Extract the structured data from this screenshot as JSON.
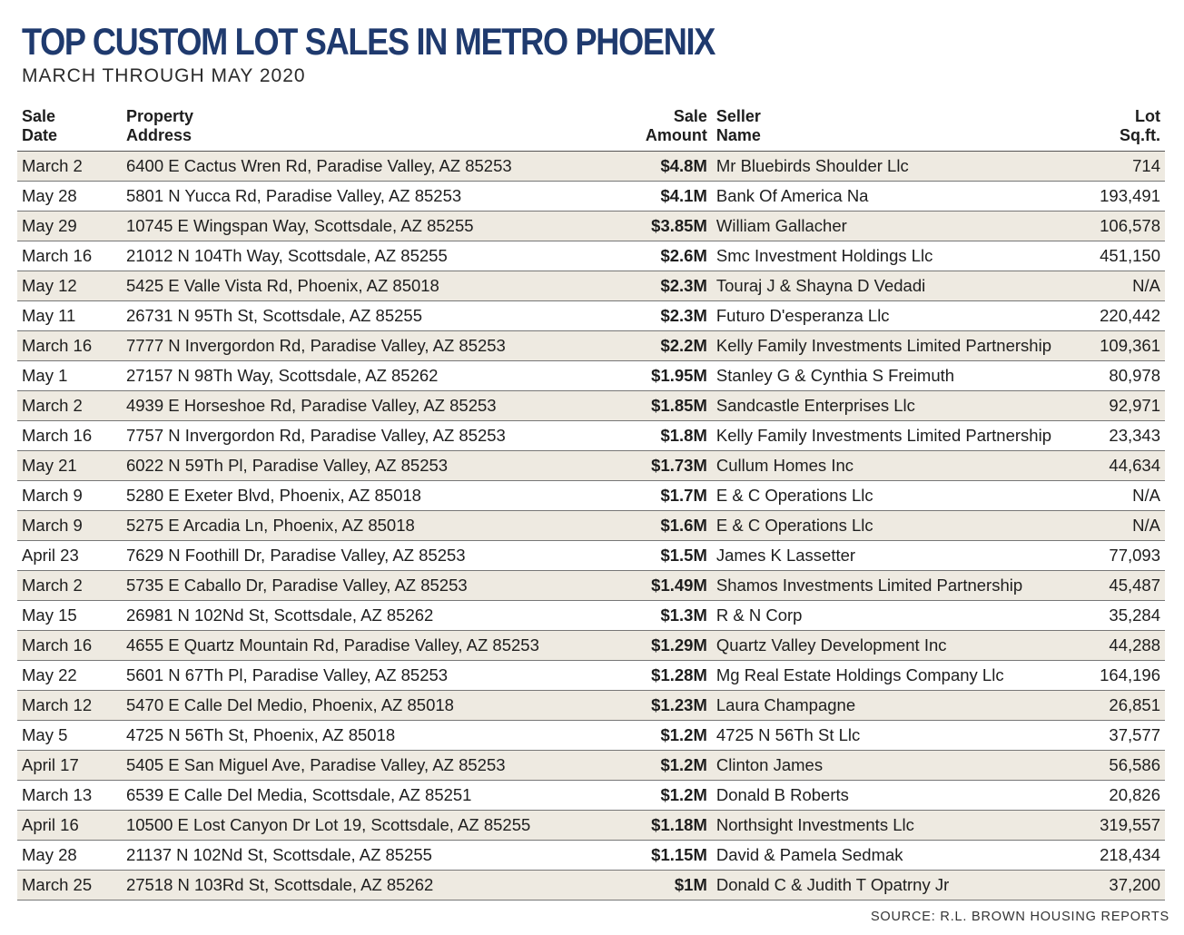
{
  "title": "TOP CUSTOM LOT SALES IN METRO PHOENIX",
  "subtitle": "MARCH THROUGH MAY 2020",
  "headers": {
    "date_1": "Sale",
    "date_2": "Date",
    "address_1": "Property",
    "address_2": "Address",
    "amount_1": "Sale",
    "amount_2": "Amount",
    "seller_1": "Seller",
    "seller_2": "Name",
    "lot_1": "Lot",
    "lot_2": "Sq.ft."
  },
  "rows": [
    {
      "date": "March 2",
      "address": "6400 E Cactus Wren Rd, Paradise Valley, AZ 85253",
      "amount": "$4.8M",
      "seller": "Mr Bluebirds Shoulder Llc",
      "lot": "714"
    },
    {
      "date": "May 28",
      "address": "5801 N Yucca Rd, Paradise Valley, AZ 85253",
      "amount": "$4.1M",
      "seller": "Bank Of America Na",
      "lot": "193,491"
    },
    {
      "date": "May 29",
      "address": "10745 E Wingspan Way, Scottsdale, AZ 85255",
      "amount": "$3.85M",
      "seller": "William Gallacher",
      "lot": "106,578"
    },
    {
      "date": "March 16",
      "address": "21012 N 104Th Way, Scottsdale, AZ 85255",
      "amount": "$2.6M",
      "seller": "Smc Investment Holdings Llc",
      "lot": "451,150"
    },
    {
      "date": "May 12",
      "address": "5425 E Valle Vista Rd, Phoenix, AZ 85018",
      "amount": "$2.3M",
      "seller": "Touraj J & Shayna D Vedadi",
      "lot": "N/A"
    },
    {
      "date": "May 11",
      "address": "26731 N 95Th St, Scottsdale, AZ 85255",
      "amount": "$2.3M",
      "seller": "Futuro D'esperanza Llc",
      "lot": "220,442"
    },
    {
      "date": "March 16",
      "address": "7777 N Invergordon Rd, Paradise Valley, AZ 85253",
      "amount": "$2.2M",
      "seller": "Kelly Family Investments Limited Partnership",
      "lot": "109,361"
    },
    {
      "date": "May 1",
      "address": "27157 N 98Th Way, Scottsdale, AZ 85262",
      "amount": "$1.95M",
      "seller": "Stanley G & Cynthia S Freimuth",
      "lot": "80,978"
    },
    {
      "date": "March 2",
      "address": "4939 E Horseshoe Rd, Paradise Valley, AZ 85253",
      "amount": "$1.85M",
      "seller": "Sandcastle Enterprises Llc",
      "lot": "92,971"
    },
    {
      "date": "March 16",
      "address": "7757 N Invergordon Rd, Paradise Valley, AZ 85253",
      "amount": "$1.8M",
      "seller": "Kelly Family Investments Limited Partnership",
      "lot": "23,343"
    },
    {
      "date": "May 21",
      "address": "6022 N 59Th Pl, Paradise Valley, AZ 85253",
      "amount": "$1.73M",
      "seller": "Cullum Homes Inc",
      "lot": "44,634"
    },
    {
      "date": "March 9",
      "address": "5280 E Exeter Blvd, Phoenix, AZ 85018",
      "amount": "$1.7M",
      "seller": "E & C Operations Llc",
      "lot": "N/A"
    },
    {
      "date": "March 9",
      "address": "5275 E Arcadia Ln, Phoenix, AZ 85018",
      "amount": "$1.6M",
      "seller": "E & C Operations Llc",
      "lot": "N/A"
    },
    {
      "date": "April 23",
      "address": "7629 N Foothill Dr, Paradise Valley, AZ 85253",
      "amount": "$1.5M",
      "seller": "James K Lassetter",
      "lot": "77,093"
    },
    {
      "date": "March 2",
      "address": "5735 E Caballo Dr, Paradise Valley, AZ 85253",
      "amount": "$1.49M",
      "seller": "Shamos Investments Limited Partnership",
      "lot": "45,487"
    },
    {
      "date": "May 15",
      "address": "26981 N 102Nd St, Scottsdale, AZ 85262",
      "amount": "$1.3M",
      "seller": "R & N Corp",
      "lot": "35,284"
    },
    {
      "date": "March 16",
      "address": "4655 E Quartz Mountain Rd, Paradise Valley, AZ 85253",
      "amount": "$1.29M",
      "seller": "Quartz Valley Development Inc",
      "lot": "44,288"
    },
    {
      "date": "May 22",
      "address": "5601 N 67Th Pl, Paradise Valley, AZ 85253",
      "amount": "$1.28M",
      "seller": "Mg Real Estate Holdings Company Llc",
      "lot": "164,196"
    },
    {
      "date": "March 12",
      "address": "5470 E Calle Del Medio, Phoenix, AZ 85018",
      "amount": "$1.23M",
      "seller": "Laura Champagne",
      "lot": "26,851"
    },
    {
      "date": "May 5",
      "address": "4725 N 56Th St, Phoenix, AZ 85018",
      "amount": "$1.2M",
      "seller": "4725 N 56Th St Llc",
      "lot": "37,577"
    },
    {
      "date": "April 17",
      "address": "5405 E San Miguel Ave, Paradise Valley, AZ 85253",
      "amount": "$1.2M",
      "seller": "Clinton James",
      "lot": "56,586"
    },
    {
      "date": "March 13",
      "address": "6539 E Calle Del Media, Scottsdale, AZ 85251",
      "amount": "$1.2M",
      "seller": "Donald B Roberts",
      "lot": "20,826"
    },
    {
      "date": "April 16",
      "address": "10500 E Lost Canyon Dr Lot 19, Scottsdale, AZ 85255",
      "amount": "$1.18M",
      "seller": "Northsight Investments Llc",
      "lot": "319,557"
    },
    {
      "date": "May 28",
      "address": "21137 N 102Nd St, Scottsdale, AZ 85255",
      "amount": "$1.15M",
      "seller": "David & Pamela Sedmak",
      "lot": "218,434"
    },
    {
      "date": "March 25",
      "address": "27518 N 103Rd St, Scottsdale, AZ 85262",
      "amount": "$1M",
      "seller": "Donald C & Judith T Opatrny Jr",
      "lot": "37,200"
    }
  ],
  "source": "SOURCE: R.L. BROWN HOUSING REPORTS",
  "colors": {
    "title": "#1f3a6e",
    "shade": "#eeeae1"
  }
}
